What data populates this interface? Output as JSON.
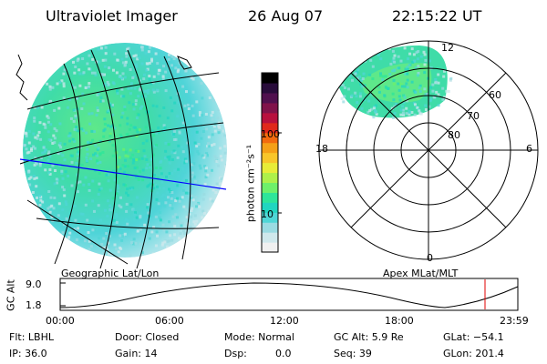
{
  "header": {
    "title": "Ultraviolet Imager",
    "date": "26 Aug 07",
    "time": "22:15:22 UT"
  },
  "geo_panel": {
    "caption": "Geographic Lat/Lon"
  },
  "colorbar": {
    "unit_label": "photon cm⁻²s⁻¹",
    "ticks": [
      "100",
      "10"
    ],
    "colors": [
      "#f0f0f0",
      "#cfe8ec",
      "#9adbe2",
      "#4fd6d6",
      "#21d6c0",
      "#2ee59a",
      "#6ef06a",
      "#aef04a",
      "#e8ec38",
      "#f8c62a",
      "#f5a017",
      "#f26a0e",
      "#e0281c",
      "#b8103e",
      "#80124a",
      "#50104e",
      "#280c3a",
      "#000000"
    ]
  },
  "polar_panel": {
    "caption": "Apex MLat/MLT",
    "ring_labels": [
      "60",
      "70",
      "80"
    ],
    "mlt_labels": {
      "top": "12",
      "left": "18",
      "right": "6",
      "bottom": "0"
    }
  },
  "altitude_plot": {
    "ylabel": "GC Alt",
    "yticks": [
      "9.0",
      "1.8"
    ],
    "xticks": [
      "00:00",
      "06:00",
      "12:00",
      "18:00",
      "23:59"
    ],
    "current_time_marker_color": "#e00000"
  },
  "status": {
    "filter": "Flt: LBHL",
    "ip": "IP: 36.0",
    "door": "Door: Closed",
    "gain": "Gain: 14",
    "mode": "Mode: Normal",
    "dsp_label": "Dsp:",
    "dsp_value": "0.0",
    "gc_alt": "GC Alt: 5.9 Re",
    "seq": "Seq: 39",
    "glat": "GLat: −54.1",
    "glon": "GLon: 201.4"
  },
  "colors": {
    "latlon_lines": "#000000",
    "equator_line": "#0000ff",
    "altitude_curve": "#000000",
    "time_marker": "#e00000"
  }
}
